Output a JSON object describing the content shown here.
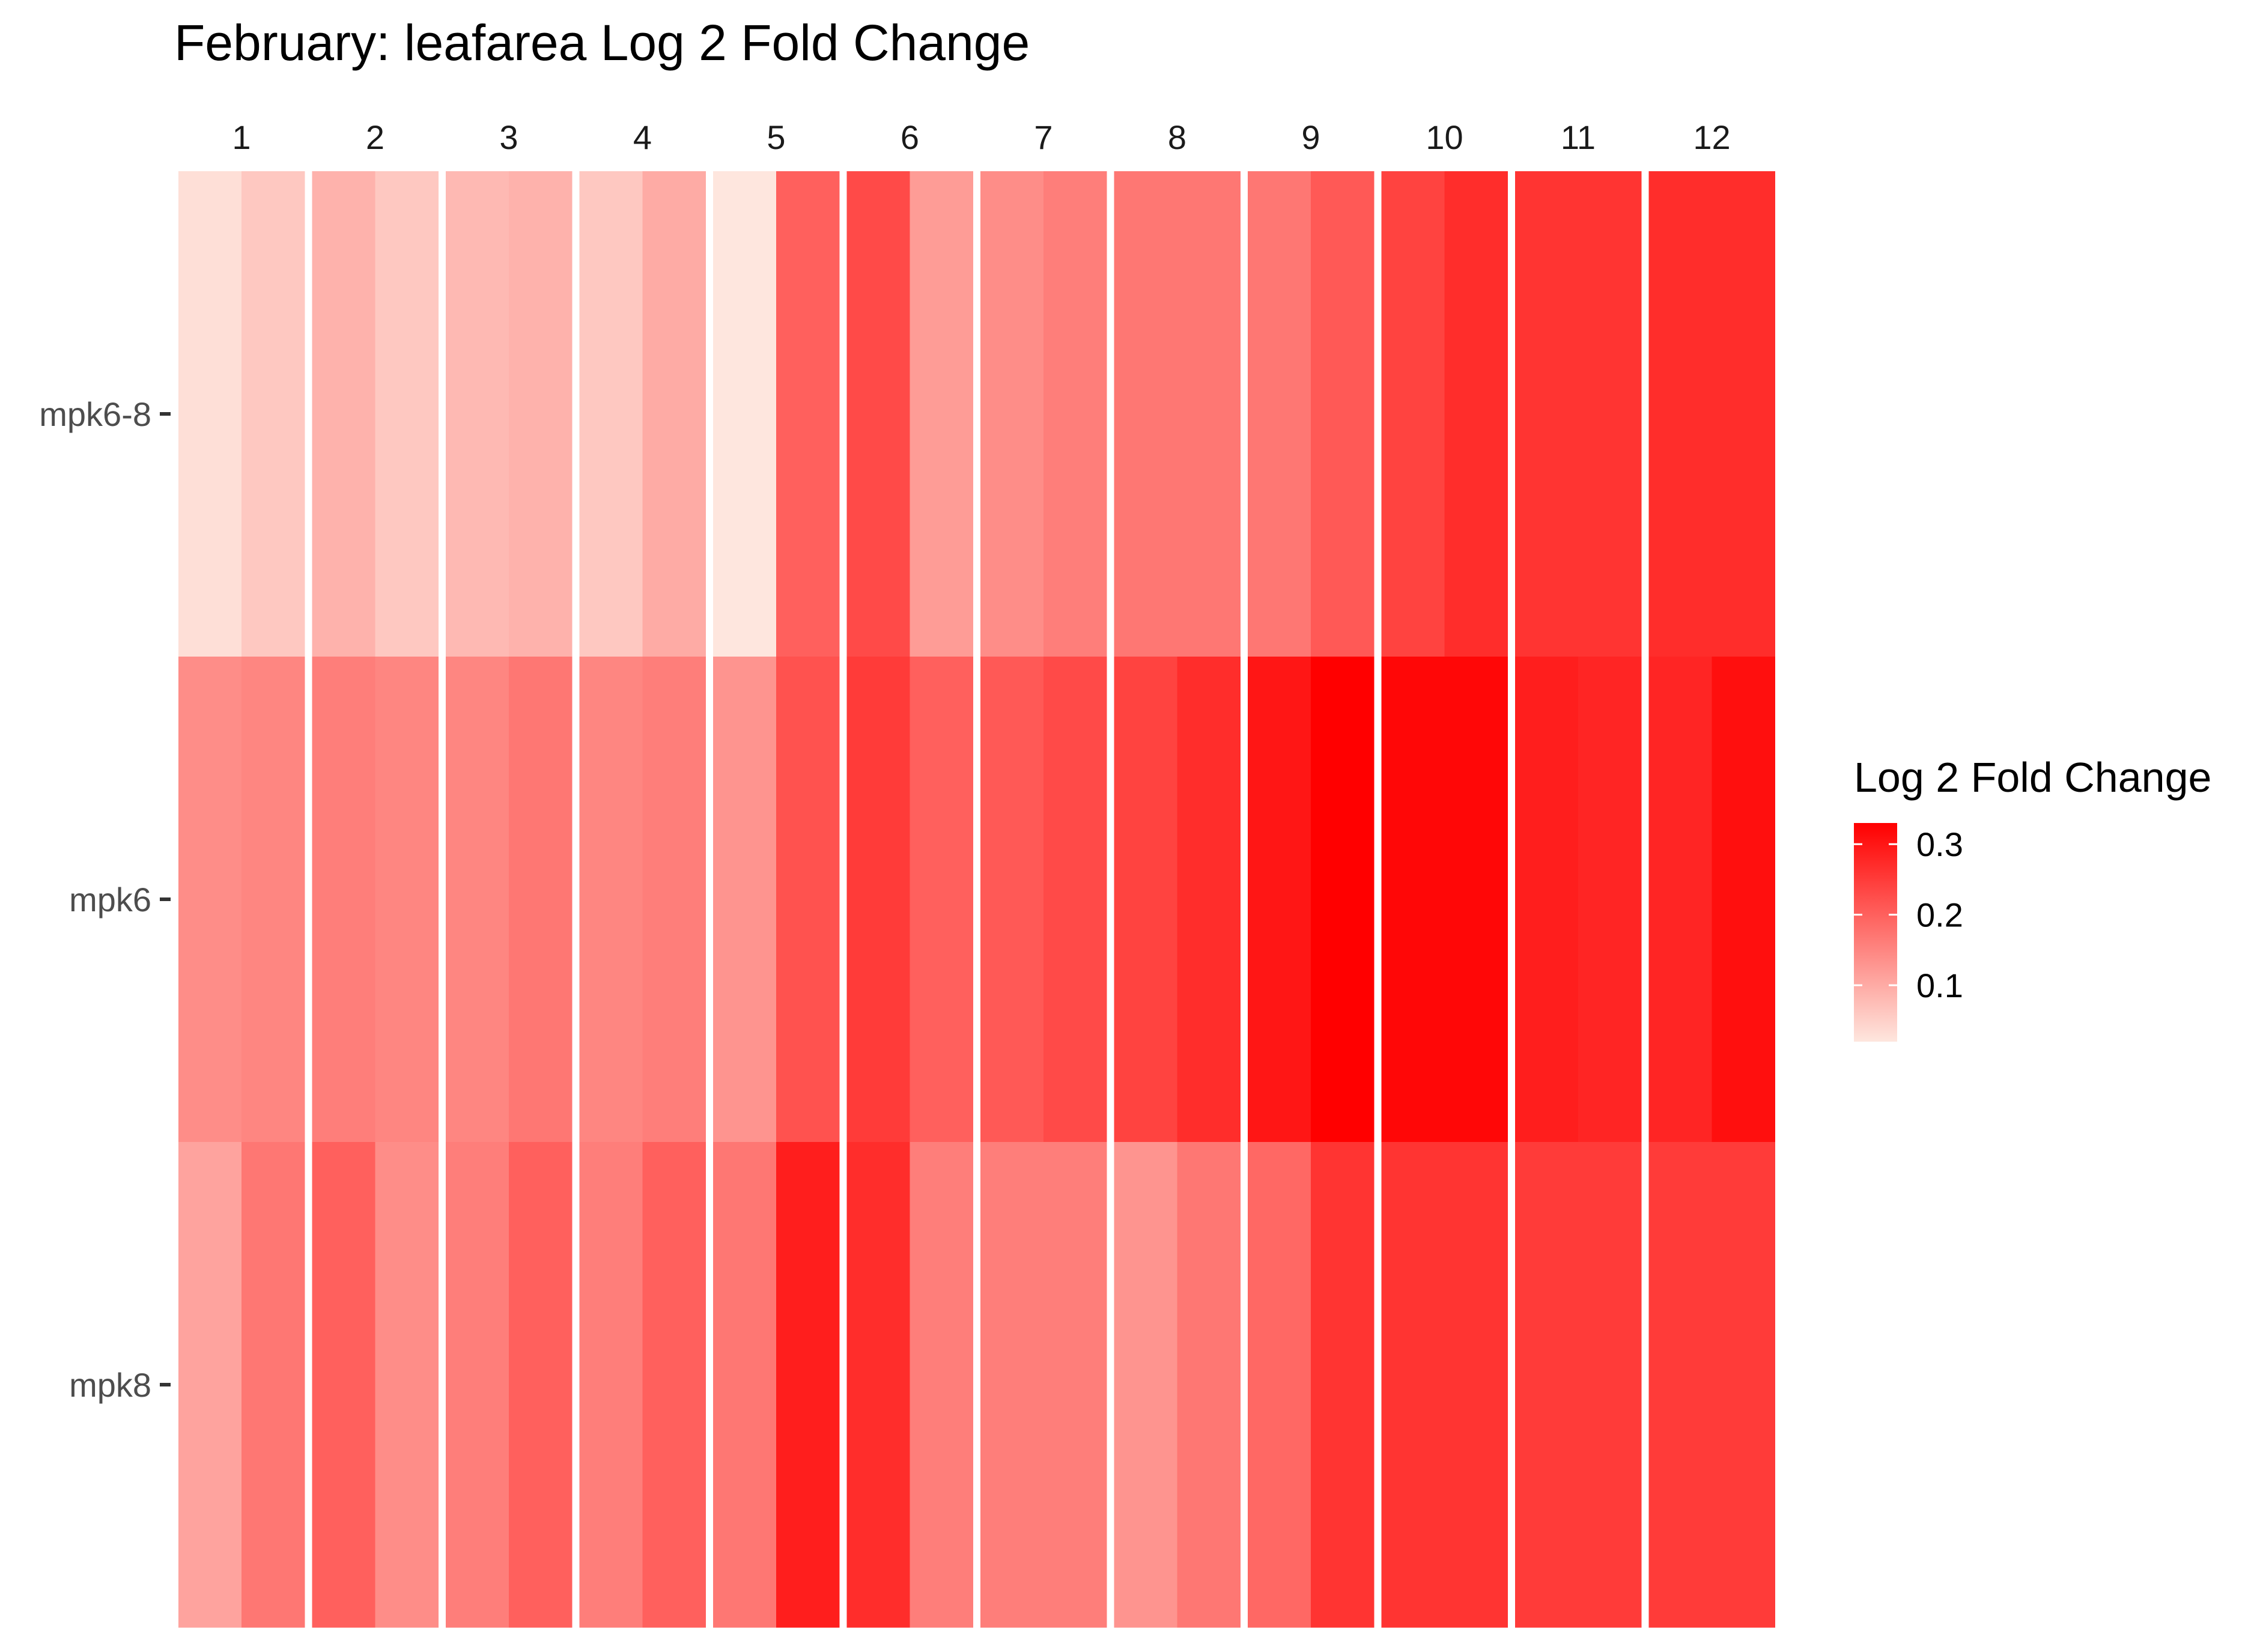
{
  "chart_data": {
    "type": "heatmap",
    "title": "February: leafarea Log 2 Fold Change",
    "xlabel": "",
    "ylabel": "",
    "facets": [
      "1",
      "2",
      "3",
      "4",
      "5",
      "6",
      "7",
      "8",
      "9",
      "10",
      "11",
      "12"
    ],
    "rows": [
      "mpk6-8",
      "mpk6",
      "mpk8"
    ],
    "sub_columns_per_facet": 2,
    "values": {
      "mpk6-8": [
        [
          0.03,
          0.06
        ],
        [
          0.09,
          0.06
        ],
        [
          0.08,
          0.09
        ],
        [
          0.06,
          0.1
        ],
        [
          0.02,
          0.2
        ],
        [
          0.23,
          0.12
        ],
        [
          0.14,
          0.16
        ],
        [
          0.17,
          0.17
        ],
        [
          0.17,
          0.21
        ],
        [
          0.24,
          0.27
        ],
        [
          0.26,
          0.26
        ],
        [
          0.27,
          0.27
        ]
      ],
      "mpk6": [
        [
          0.14,
          0.15
        ],
        [
          0.16,
          0.15
        ],
        [
          0.15,
          0.17
        ],
        [
          0.15,
          0.16
        ],
        [
          0.13,
          0.22
        ],
        [
          0.25,
          0.2
        ],
        [
          0.21,
          0.23
        ],
        [
          0.24,
          0.27
        ],
        [
          0.3,
          0.33
        ],
        [
          0.32,
          0.32
        ],
        [
          0.29,
          0.28
        ],
        [
          0.28,
          0.31
        ]
      ],
      "mpk8": [
        [
          0.11,
          0.17
        ],
        [
          0.2,
          0.14
        ],
        [
          0.16,
          0.2
        ],
        [
          0.16,
          0.2
        ],
        [
          0.17,
          0.29
        ],
        [
          0.27,
          0.16
        ],
        [
          0.16,
          0.16
        ],
        [
          0.13,
          0.17
        ],
        [
          0.19,
          0.26
        ],
        [
          0.26,
          0.26
        ],
        [
          0.25,
          0.25
        ],
        [
          0.25,
          0.25
        ]
      ]
    },
    "legend": {
      "title": "Log 2 Fold Change",
      "ticks": [
        "0.3",
        "0.2",
        "0.1"
      ],
      "tick_values": [
        0.3,
        0.2,
        0.1
      ],
      "range": [
        0.02,
        0.33
      ],
      "position": "right",
      "color_low": "#fee6de",
      "color_high": "#ff0000"
    },
    "grid": false
  }
}
